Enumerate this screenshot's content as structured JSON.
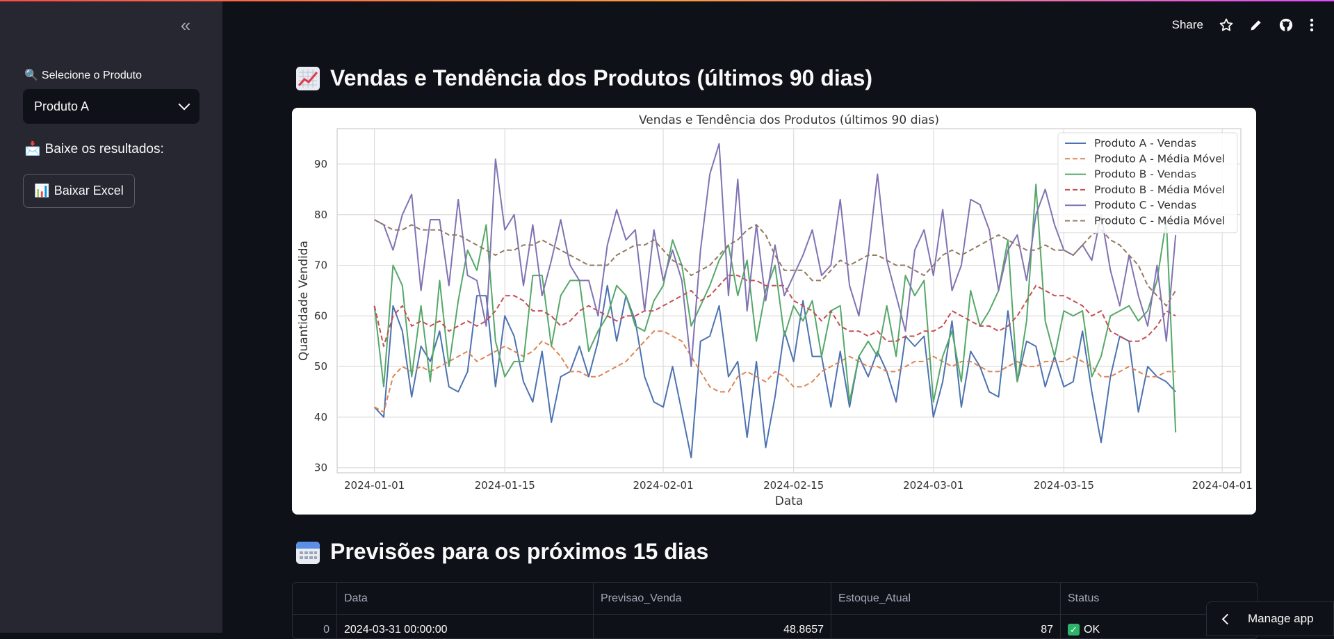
{
  "sidebar": {
    "collapse_icon": "double-chevron-left-icon",
    "select_label_icon": "🔍",
    "select_label": "Selecione o Produto",
    "select_value": "Produto A",
    "download_heading_icon": "📩",
    "download_heading": "Baixe os resultados:",
    "download_button_icon": "📊",
    "download_button": "Baixar Excel"
  },
  "toolbar": {
    "share": "Share",
    "icons": [
      "star-icon",
      "pencil-icon",
      "github-icon",
      "more-vertical-icon"
    ]
  },
  "main": {
    "title": "Vendas e Tendência dos Produtos (últimos 90 dias)",
    "title_icon": "chart-increasing-icon",
    "forecast_title": "Previsões para os próximos 15 dias",
    "forecast_icon": "calendar-icon"
  },
  "chart_data": {
    "type": "line",
    "title": "Vendas e Tendência dos Produtos (últimos 90 dias)",
    "xlabel": "Data",
    "ylabel": "Quantidade Vendida",
    "xlim": [
      "2023-12-28",
      "2024-04-03"
    ],
    "ylim": [
      29,
      97
    ],
    "x_ticks": [
      "2024-01-01",
      "2024-01-15",
      "2024-02-01",
      "2024-02-15",
      "2024-03-01",
      "2024-03-15",
      "2024-04-01"
    ],
    "y_ticks": [
      30,
      40,
      50,
      60,
      70,
      80,
      90
    ],
    "grid": true,
    "legend": "top-right",
    "x_start": "2024-01-01",
    "series": [
      {
        "name": "Produto A - Vendas",
        "color": "#4c72b0",
        "dashed": false,
        "values": [
          42,
          40,
          62,
          57,
          44,
          54,
          51,
          57,
          46,
          45,
          49,
          64,
          64,
          46,
          60,
          56,
          47,
          43,
          53,
          39,
          48,
          49,
          54,
          48,
          55,
          66,
          55,
          64,
          59,
          48,
          43,
          42,
          50,
          41,
          32,
          55,
          56,
          62,
          48,
          51,
          36,
          51,
          34,
          44,
          57,
          51,
          63,
          52,
          52,
          42,
          53,
          42,
          52,
          48,
          53,
          49,
          43,
          56,
          54,
          56,
          40,
          47,
          59,
          42,
          53,
          50,
          45,
          44,
          61,
          47,
          55,
          54,
          46,
          52,
          46,
          47,
          57,
          45,
          35,
          48,
          56,
          55,
          41,
          50,
          48,
          47,
          45
        ]
      },
      {
        "name": "Produto A - Média Móvel",
        "color": "#dd8452",
        "dashed": true,
        "values": [
          42,
          41,
          48,
          50,
          49,
          50,
          49,
          50,
          51,
          52,
          53,
          51,
          52,
          53,
          54,
          53,
          52,
          53,
          55,
          54,
          52,
          49,
          49,
          48,
          48,
          49,
          50,
          51,
          53,
          55,
          57,
          57,
          56,
          55,
          52,
          49,
          46,
          45,
          45,
          48,
          49,
          48,
          47,
          49,
          48,
          46,
          46,
          47,
          49,
          50,
          51,
          52,
          51,
          50,
          50,
          49,
          49,
          50,
          51,
          51,
          52,
          51,
          50,
          51,
          51,
          50,
          49,
          49,
          50,
          51,
          50,
          50,
          51,
          51,
          51,
          52,
          51,
          50,
          48,
          48,
          49,
          50,
          49,
          48,
          48,
          49,
          49
        ]
      },
      {
        "name": "Produto B - Vendas",
        "color": "#55a868",
        "dashed": false,
        "values": [
          62,
          46,
          70,
          66,
          48,
          62,
          47,
          67,
          50,
          63,
          73,
          69,
          78,
          55,
          48,
          51,
          51,
          68,
          68,
          54,
          64,
          67,
          67,
          53,
          57,
          60,
          66,
          64,
          58,
          57,
          63,
          66,
          75,
          70,
          58,
          62,
          66,
          71,
          74,
          64,
          71,
          55,
          65,
          70,
          56,
          62,
          59,
          63,
          52,
          61,
          62,
          43,
          52,
          55,
          52,
          62,
          52,
          68,
          64,
          67,
          43,
          52,
          57,
          47,
          65,
          58,
          61,
          65,
          75,
          47,
          59,
          86,
          59,
          52,
          61,
          60,
          61,
          48,
          52,
          60,
          61,
          62,
          59,
          61,
          67,
          79,
          37
        ]
      },
      {
        "name": "Produto B - Média Móvel",
        "color": "#c44e52",
        "dashed": true,
        "values": [
          62,
          54,
          60,
          62,
          58,
          59,
          58,
          59,
          57,
          58,
          59,
          58,
          59,
          61,
          64,
          64,
          63,
          61,
          61,
          60,
          58,
          59,
          61,
          62,
          61,
          60,
          59,
          60,
          60,
          61,
          61,
          62,
          63,
          64,
          65,
          63,
          64,
          66,
          68,
          68,
          67,
          67,
          66,
          66,
          66,
          63,
          62,
          61,
          59,
          61,
          58,
          57,
          57,
          56,
          57,
          55,
          55,
          56,
          56,
          57,
          57,
          58,
          61,
          60,
          59,
          58,
          58,
          57,
          58,
          60,
          63,
          66,
          65,
          64,
          64,
          63,
          62,
          60,
          61,
          57,
          56,
          55,
          55,
          56,
          58,
          61,
          60
        ]
      },
      {
        "name": "Produto C - Vendas",
        "color": "#8172b3",
        "dashed": false,
        "values": [
          79,
          78,
          73,
          80,
          84,
          65,
          79,
          79,
          66,
          83,
          68,
          67,
          58,
          91,
          77,
          80,
          66,
          78,
          64,
          71,
          79,
          70,
          67,
          67,
          60,
          74,
          81,
          75,
          77,
          61,
          77,
          67,
          73,
          67,
          50,
          73,
          88,
          94,
          64,
          87,
          61,
          78,
          63,
          74,
          64,
          68,
          72,
          77,
          68,
          70,
          83,
          66,
          60,
          72,
          88,
          71,
          64,
          57,
          73,
          77,
          68,
          81,
          65,
          70,
          83,
          82,
          77,
          65,
          73,
          76,
          67,
          80,
          85,
          78,
          73,
          72,
          74,
          71,
          80,
          69,
          62,
          72,
          64,
          58,
          70,
          55,
          76
        ]
      },
      {
        "name": "Produto C - Média Móvel",
        "color": "#937860",
        "dashed": true,
        "values": [
          79,
          78,
          77,
          77,
          78,
          77,
          77,
          77,
          76,
          76,
          75,
          74,
          73,
          72,
          73,
          73,
          74,
          74,
          75,
          74,
          73,
          72,
          71,
          70,
          70,
          70,
          72,
          73,
          74,
          74,
          75,
          73,
          71,
          70,
          68,
          69,
          70,
          72,
          74,
          75,
          77,
          78,
          76,
          72,
          69,
          69,
          69,
          67,
          67,
          69,
          71,
          70,
          71,
          72,
          72,
          71,
          70,
          70,
          69,
          68,
          70,
          72,
          73,
          72,
          73,
          74,
          75,
          76,
          75,
          74,
          73,
          73,
          74,
          73,
          73,
          72,
          74,
          76,
          77,
          75,
          74,
          72,
          70,
          66,
          64,
          62,
          65
        ]
      }
    ]
  },
  "table": {
    "columns": [
      "",
      "Data",
      "Previsao_Venda",
      "Estoque_Atual",
      "Status"
    ],
    "rows": [
      {
        "index": "0",
        "data": "2024-03-31 00:00:00",
        "previsao": "48.8657",
        "estoque": "87",
        "status": "OK"
      }
    ]
  },
  "manage_app": "Manage app"
}
